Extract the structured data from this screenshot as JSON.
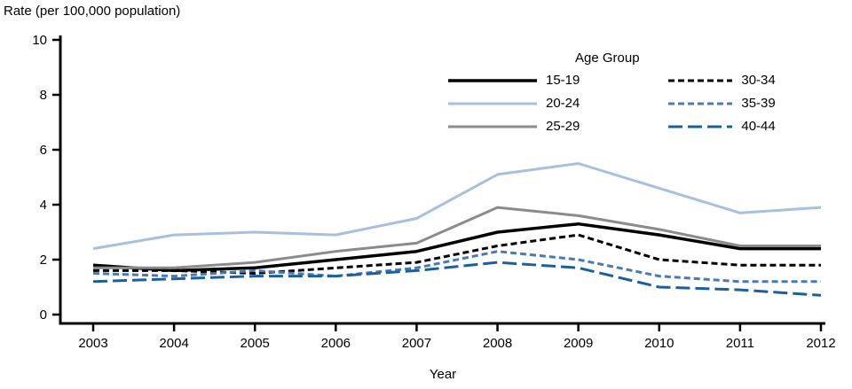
{
  "chart_data": {
    "type": "line",
    "title": "Rate (per 100,000 population)",
    "xlabel": "Year",
    "ylabel": "Rate (per 100,000 population)",
    "legend_title": "Age Group",
    "legend_position": "top-right-inside",
    "grid": false,
    "x": [
      2003,
      2004,
      2005,
      2006,
      2007,
      2008,
      2009,
      2010,
      2011,
      2012
    ],
    "ylim": [
      0,
      10
    ],
    "yticks": [
      0,
      2,
      4,
      6,
      8,
      10
    ],
    "series": [
      {
        "name": "15-19",
        "color": "#000000",
        "dash": "",
        "width": 3.5,
        "values": [
          1.8,
          1.6,
          1.7,
          2.0,
          2.3,
          3.0,
          3.3,
          2.9,
          2.4,
          2.4
        ]
      },
      {
        "name": "20-24",
        "color": "#a6c0dd",
        "dash": "",
        "width": 3,
        "values": [
          2.4,
          2.9,
          3.0,
          2.9,
          3.5,
          5.1,
          5.5,
          4.6,
          3.7,
          3.9
        ]
      },
      {
        "name": "25-29",
        "color": "#8b8b8b",
        "dash": "",
        "width": 3,
        "values": [
          1.7,
          1.7,
          1.9,
          2.3,
          2.6,
          3.9,
          3.6,
          3.1,
          2.5,
          2.5
        ]
      },
      {
        "name": "30-34",
        "color": "#000000",
        "dash": "7,4",
        "width": 3,
        "values": [
          1.6,
          1.6,
          1.5,
          1.7,
          1.9,
          2.5,
          2.9,
          2.0,
          1.8,
          1.8
        ]
      },
      {
        "name": "35-39",
        "color": "#4a7ab5",
        "dash": "7,4",
        "width": 3,
        "values": [
          1.5,
          1.4,
          1.6,
          1.4,
          1.7,
          2.3,
          2.0,
          1.4,
          1.2,
          1.2
        ]
      },
      {
        "name": "40-44",
        "color": "#1b609c",
        "dash": "16,6",
        "width": 3,
        "values": [
          1.2,
          1.3,
          1.4,
          1.4,
          1.6,
          1.9,
          1.7,
          1.0,
          0.9,
          0.7
        ]
      }
    ]
  }
}
